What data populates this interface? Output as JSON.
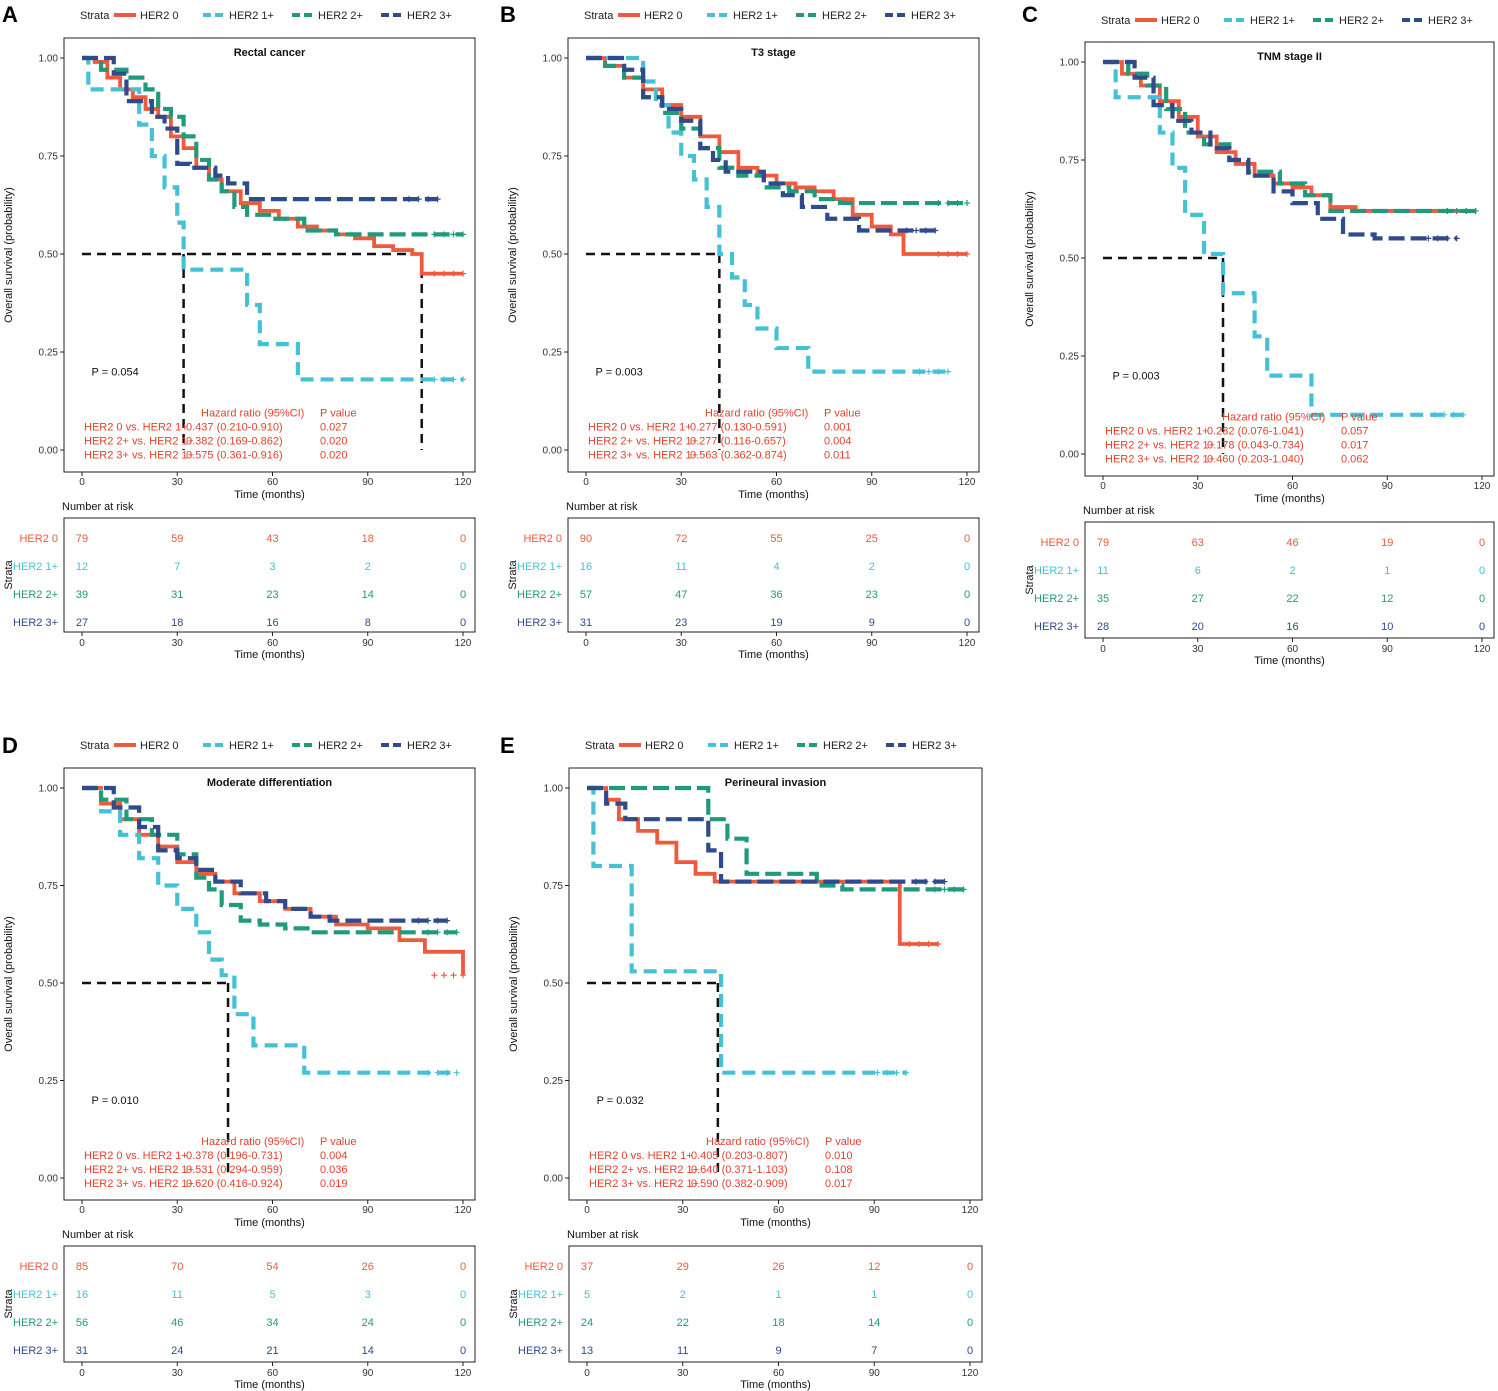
{
  "colors": {
    "HER2 0": "#ef5a3c",
    "HER2 1+": "#45c1d6",
    "HER2 2+": "#1f9a7b",
    "HER2 3+": "#2f4b8c",
    "median": "#111111",
    "hr_text": "#e3412d"
  },
  "common": {
    "legend_title": "Strata",
    "strata": [
      "HER2 0",
      "HER2 1+",
      "HER2 2+",
      "HER2 3+"
    ],
    "y_label": "Overall survival (probability)",
    "x_label": "Time (months)",
    "x_ticks": [
      "0",
      "30",
      "60",
      "90",
      "120"
    ],
    "y_ticks": [
      "0.00",
      "0.25",
      "0.50",
      "0.75",
      "1.00"
    ],
    "risk_title": "Number at risk",
    "risk_y_label": "Strata",
    "hr_header": "Hazard ratio (95%CI)",
    "p_header": "P value"
  },
  "chart_data": [
    {
      "panel": "A",
      "type": "line",
      "subtype": "kaplan-meier",
      "title": "Rectal cancer",
      "xlabel": "Time (months)",
      "ylabel": "Overall survival (probability)",
      "xlim": [
        0,
        120
      ],
      "ylim": [
        0,
        1
      ],
      "p_value": "P = 0.054",
      "median_x": [
        32,
        107
      ],
      "series": [
        {
          "name": "HER2 0",
          "x": [
            0,
            4,
            8,
            12,
            16,
            20,
            24,
            28,
            32,
            36,
            40,
            44,
            50,
            56,
            62,
            68,
            74,
            80,
            86,
            92,
            98,
            104,
            107,
            112,
            120
          ],
          "values": [
            1.0,
            0.99,
            0.95,
            0.92,
            0.9,
            0.87,
            0.85,
            0.8,
            0.77,
            0.72,
            0.69,
            0.66,
            0.63,
            0.61,
            0.59,
            0.57,
            0.56,
            0.55,
            0.54,
            0.52,
            0.51,
            0.5,
            0.45,
            0.45,
            0.45
          ]
        },
        {
          "name": "HER2 1+",
          "x": [
            0,
            2,
            7,
            14,
            18,
            22,
            26,
            30,
            32,
            48,
            52,
            56,
            68,
            120
          ],
          "values": [
            1.0,
            0.92,
            0.92,
            0.92,
            0.83,
            0.75,
            0.67,
            0.58,
            0.46,
            0.46,
            0.37,
            0.27,
            0.18,
            0.18
          ]
        },
        {
          "name": "HER2 2+",
          "x": [
            0,
            6,
            14,
            20,
            24,
            28,
            32,
            36,
            40,
            44,
            48,
            52,
            60,
            70,
            80,
            90,
            120
          ],
          "values": [
            1.0,
            0.97,
            0.95,
            0.92,
            0.87,
            0.85,
            0.8,
            0.74,
            0.69,
            0.66,
            0.62,
            0.6,
            0.59,
            0.56,
            0.55,
            0.55,
            0.55
          ]
        },
        {
          "name": "HER2 3+",
          "x": [
            0,
            10,
            14,
            22,
            26,
            30,
            34,
            42,
            46,
            52,
            58,
            64,
            72,
            80,
            90,
            112
          ],
          "values": [
            1.0,
            0.96,
            0.89,
            0.85,
            0.82,
            0.73,
            0.72,
            0.7,
            0.68,
            0.64,
            0.64,
            0.64,
            0.64,
            0.64,
            0.64,
            0.64
          ]
        }
      ],
      "hazard_ratios": [
        {
          "label": "HER2 0 vs. HER2 1+",
          "hr": "0.437 (0.210-0.910)",
          "p": "0.027"
        },
        {
          "label": "HER2 2+ vs. HER2 1+",
          "hr": "0.382 (0.169-0.862)",
          "p": "0.020"
        },
        {
          "label": "HER2 3+ vs. HER2 1+",
          "hr": "0.575 (0.361-0.916)",
          "p": "0.020"
        }
      ],
      "risk_table": {
        "times": [
          0,
          30,
          60,
          90,
          120
        ],
        "HER2 0": [
          "79",
          "59",
          "43",
          "18",
          "0"
        ],
        "HER2 1+": [
          "12",
          "7",
          "3",
          "2",
          "0"
        ],
        "HER2 2+": [
          "39",
          "31",
          "23",
          "14",
          "0"
        ],
        "HER2 3+": [
          "27",
          "18",
          "16",
          "8",
          "0"
        ]
      }
    },
    {
      "panel": "B",
      "type": "line",
      "subtype": "kaplan-meier",
      "title": "T3 stage",
      "xlabel": "Time (months)",
      "ylabel": "Overall survival (probability)",
      "xlim": [
        0,
        120
      ],
      "ylim": [
        0,
        1
      ],
      "p_value": "P = 0.003",
      "median_x": [
        42
      ],
      "series": [
        {
          "name": "HER2 0",
          "x": [
            0,
            6,
            12,
            18,
            24,
            30,
            36,
            42,
            48,
            54,
            60,
            66,
            72,
            78,
            84,
            90,
            96,
            100,
            120
          ],
          "values": [
            1.0,
            0.98,
            0.95,
            0.92,
            0.88,
            0.85,
            0.8,
            0.76,
            0.72,
            0.7,
            0.68,
            0.67,
            0.66,
            0.64,
            0.6,
            0.57,
            0.55,
            0.5,
            0.5
          ]
        },
        {
          "name": "HER2 1+",
          "x": [
            0,
            14,
            18,
            22,
            26,
            30,
            34,
            38,
            42,
            46,
            50,
            54,
            60,
            66,
            70,
            114
          ],
          "values": [
            1.0,
            1.0,
            0.94,
            0.88,
            0.81,
            0.75,
            0.69,
            0.62,
            0.5,
            0.44,
            0.37,
            0.31,
            0.26,
            0.26,
            0.2,
            0.2
          ]
        },
        {
          "name": "HER2 2+",
          "x": [
            0,
            6,
            12,
            18,
            24,
            30,
            36,
            42,
            48,
            56,
            64,
            72,
            80,
            90,
            120
          ],
          "values": [
            1.0,
            0.98,
            0.95,
            0.9,
            0.86,
            0.82,
            0.77,
            0.72,
            0.7,
            0.67,
            0.66,
            0.64,
            0.63,
            0.63,
            0.63
          ]
        },
        {
          "name": "HER2 3+",
          "x": [
            0,
            12,
            18,
            24,
            30,
            36,
            40,
            44,
            50,
            56,
            62,
            68,
            76,
            86,
            96,
            110
          ],
          "values": [
            1.0,
            0.97,
            0.9,
            0.87,
            0.84,
            0.77,
            0.74,
            0.71,
            0.71,
            0.68,
            0.65,
            0.62,
            0.59,
            0.56,
            0.56,
            0.56
          ]
        }
      ],
      "hazard_ratios": [
        {
          "label": "HER2 0 vs. HER2 1+",
          "hr": "0.277 (0.130-0.591)",
          "p": "0.001"
        },
        {
          "label": "HER2 2+ vs. HER2 1+",
          "hr": "0.277 (0.116-0.657)",
          "p": "0.004"
        },
        {
          "label": "HER2 3+ vs. HER2 1+",
          "hr": "0.563 (0.362-0.874)",
          "p": "0.011"
        }
      ],
      "risk_table": {
        "times": [
          0,
          30,
          60,
          90,
          120
        ],
        "HER2 0": [
          "90",
          "72",
          "55",
          "25",
          "0"
        ],
        "HER2 1+": [
          "16",
          "11",
          "4",
          "2",
          "0"
        ],
        "HER2 2+": [
          "57",
          "47",
          "36",
          "23",
          "0"
        ],
        "HER2 3+": [
          "31",
          "23",
          "19",
          "9",
          "0"
        ]
      }
    },
    {
      "panel": "C",
      "type": "line",
      "subtype": "kaplan-meier",
      "title": "TNM stage II",
      "xlabel": "Time (months)",
      "ylabel": "Overall survival (probability)",
      "xlim": [
        0,
        120
      ],
      "ylim": [
        0,
        1
      ],
      "p_value": "P = 0.003",
      "median_x": [
        38
      ],
      "series": [
        {
          "name": "HER2 0",
          "x": [
            0,
            6,
            12,
            18,
            24,
            30,
            36,
            42,
            48,
            54,
            60,
            66,
            72,
            80,
            90,
            100,
            118
          ],
          "values": [
            1.0,
            0.97,
            0.94,
            0.9,
            0.86,
            0.81,
            0.77,
            0.74,
            0.71,
            0.69,
            0.68,
            0.66,
            0.63,
            0.62,
            0.62,
            0.62,
            0.62
          ]
        },
        {
          "name": "HER2 1+",
          "x": [
            0,
            4,
            10,
            18,
            22,
            26,
            32,
            38,
            44,
            48,
            52,
            66,
            114
          ],
          "values": [
            1.0,
            0.91,
            0.91,
            0.82,
            0.73,
            0.61,
            0.51,
            0.41,
            0.41,
            0.3,
            0.2,
            0.1,
            0.1
          ]
        },
        {
          "name": "HER2 2+",
          "x": [
            0,
            8,
            14,
            20,
            26,
            32,
            40,
            46,
            56,
            64,
            72,
            80,
            90,
            118
          ],
          "values": [
            1.0,
            0.97,
            0.94,
            0.88,
            0.82,
            0.79,
            0.75,
            0.72,
            0.69,
            0.66,
            0.62,
            0.62,
            0.62,
            0.62
          ]
        },
        {
          "name": "HER2 3+",
          "x": [
            0,
            10,
            16,
            22,
            28,
            34,
            40,
            46,
            54,
            60,
            68,
            76,
            86,
            112
          ],
          "values": [
            1.0,
            0.96,
            0.89,
            0.85,
            0.82,
            0.78,
            0.75,
            0.71,
            0.67,
            0.64,
            0.6,
            0.56,
            0.55,
            0.55
          ]
        }
      ],
      "hazard_ratios": [
        {
          "label": "HER2 0 vs. HER2 1+",
          "hr": "0.282 (0.076-1.041)",
          "p": "0.057"
        },
        {
          "label": "HER2 2+ vs. HER2 1+",
          "hr": "0.178 (0.043-0.734)",
          "p": "0.017"
        },
        {
          "label": "HER2 3+ vs. HER2 1+",
          "hr": "0.460 (0.203-1.040)",
          "p": "0.062"
        }
      ],
      "risk_table": {
        "times": [
          0,
          30,
          60,
          90,
          120
        ],
        "HER2 0": [
          "79",
          "63",
          "46",
          "19",
          "0"
        ],
        "HER2 1+": [
          "11",
          "6",
          "2",
          "1",
          "0"
        ],
        "HER2 2+": [
          "35",
          "27",
          "22",
          "12",
          "0"
        ],
        "HER2 3+": [
          "28",
          "20",
          "16",
          "10",
          "0"
        ]
      }
    },
    {
      "panel": "D",
      "type": "line",
      "subtype": "kaplan-meier",
      "title": "Moderate differentiation",
      "xlabel": "Time (months)",
      "ylabel": "Overall survival (probability)",
      "xlim": [
        0,
        120
      ],
      "ylim": [
        0,
        1
      ],
      "p_value": "P = 0.010",
      "median_x": [
        46
      ],
      "series": [
        {
          "name": "HER2 0",
          "x": [
            0,
            6,
            12,
            18,
            24,
            30,
            36,
            42,
            48,
            56,
            64,
            72,
            80,
            90,
            100,
            108,
            120
          ],
          "values": [
            1.0,
            0.96,
            0.92,
            0.88,
            0.85,
            0.81,
            0.78,
            0.76,
            0.73,
            0.71,
            0.69,
            0.67,
            0.65,
            0.64,
            0.61,
            0.58,
            0.52
          ]
        },
        {
          "name": "HER2 1+",
          "x": [
            0,
            6,
            12,
            18,
            24,
            30,
            36,
            40,
            44,
            48,
            54,
            66,
            70,
            118
          ],
          "values": [
            1.0,
            0.94,
            0.88,
            0.82,
            0.75,
            0.69,
            0.63,
            0.56,
            0.52,
            0.42,
            0.34,
            0.34,
            0.27,
            0.27
          ]
        },
        {
          "name": "HER2 2+",
          "x": [
            0,
            6,
            14,
            22,
            30,
            36,
            40,
            44,
            50,
            56,
            64,
            72,
            80,
            90,
            118
          ],
          "values": [
            1.0,
            0.97,
            0.92,
            0.88,
            0.83,
            0.77,
            0.74,
            0.7,
            0.66,
            0.65,
            0.64,
            0.63,
            0.63,
            0.63,
            0.63
          ]
        },
        {
          "name": "HER2 3+",
          "x": [
            0,
            10,
            18,
            24,
            30,
            36,
            42,
            50,
            58,
            64,
            72,
            78,
            84,
            96,
            115
          ],
          "values": [
            1.0,
            0.95,
            0.9,
            0.84,
            0.82,
            0.79,
            0.76,
            0.73,
            0.71,
            0.69,
            0.67,
            0.66,
            0.66,
            0.66,
            0.66
          ]
        }
      ],
      "hazard_ratios": [
        {
          "label": "HER2 0 vs. HER2 1+",
          "hr": "0.378 (0.196-0.731)",
          "p": "0.004"
        },
        {
          "label": "HER2 2+ vs. HER2 1+",
          "hr": "0.531 (0.294-0.959)",
          "p": "0.036"
        },
        {
          "label": "HER2 3+ vs. HER2 1+",
          "hr": "0.620 (0.416-0.924)",
          "p": "0.019"
        }
      ],
      "risk_table": {
        "times": [
          0,
          30,
          60,
          90,
          120
        ],
        "HER2 0": [
          "85",
          "70",
          "54",
          "26",
          "0"
        ],
        "HER2 1+": [
          "16",
          "11",
          "5",
          "3",
          "0"
        ],
        "HER2 2+": [
          "56",
          "46",
          "34",
          "24",
          "0"
        ],
        "HER2 3+": [
          "31",
          "24",
          "21",
          "14",
          "0"
        ]
      }
    },
    {
      "panel": "E",
      "type": "line",
      "subtype": "kaplan-meier",
      "title": "Perineural invasion",
      "xlabel": "Time (months)",
      "ylabel": "Overall survival (probability)",
      "xlim": [
        0,
        120
      ],
      "ylim": [
        0,
        1
      ],
      "p_value": "P = 0.032",
      "median_x": [
        41
      ],
      "series": [
        {
          "name": "HER2 0",
          "x": [
            0,
            6,
            10,
            16,
            22,
            28,
            34,
            40,
            50,
            60,
            70,
            80,
            90,
            98,
            110
          ],
          "values": [
            1.0,
            0.97,
            0.92,
            0.89,
            0.86,
            0.81,
            0.78,
            0.76,
            0.76,
            0.76,
            0.76,
            0.76,
            0.76,
            0.6,
            0.6
          ]
        },
        {
          "name": "HER2 1+",
          "x": [
            0,
            2,
            14,
            40,
            42,
            100
          ],
          "values": [
            1.0,
            0.8,
            0.53,
            0.53,
            0.27,
            0.27
          ]
        },
        {
          "name": "HER2 2+",
          "x": [
            0,
            20,
            38,
            44,
            50,
            66,
            72,
            80,
            90,
            100,
            118
          ],
          "values": [
            1.0,
            1.0,
            0.92,
            0.87,
            0.78,
            0.78,
            0.75,
            0.74,
            0.74,
            0.74,
            0.74
          ]
        },
        {
          "name": "HER2 3+",
          "x": [
            0,
            6,
            12,
            20,
            36,
            38,
            42,
            46,
            60,
            80,
            100,
            112
          ],
          "values": [
            1.0,
            0.96,
            0.92,
            0.92,
            0.92,
            0.84,
            0.76,
            0.76,
            0.76,
            0.76,
            0.76,
            0.76
          ]
        }
      ],
      "hazard_ratios": [
        {
          "label": "HER2 0 vs. HER2 1+",
          "hr": "0.405 (0.203-0.807)",
          "p": "0.010"
        },
        {
          "label": "HER2 2+ vs. HER2 1+",
          "hr": "0.640 (0.371-1.103)",
          "p": "0.108"
        },
        {
          "label": "HER2 3+ vs. HER2 1+",
          "hr": "0.590 (0.382-0.909)",
          "p": "0.017"
        }
      ],
      "risk_table": {
        "times": [
          0,
          30,
          60,
          90,
          120
        ],
        "HER2 0": [
          "37",
          "29",
          "26",
          "12",
          "0"
        ],
        "HER2 1+": [
          "5",
          "2",
          "1",
          "1",
          "0"
        ],
        "HER2 2+": [
          "24",
          "22",
          "18",
          "14",
          "0"
        ],
        "HER2 3+": [
          "13",
          "11",
          "9",
          "7",
          "0"
        ]
      }
    }
  ]
}
